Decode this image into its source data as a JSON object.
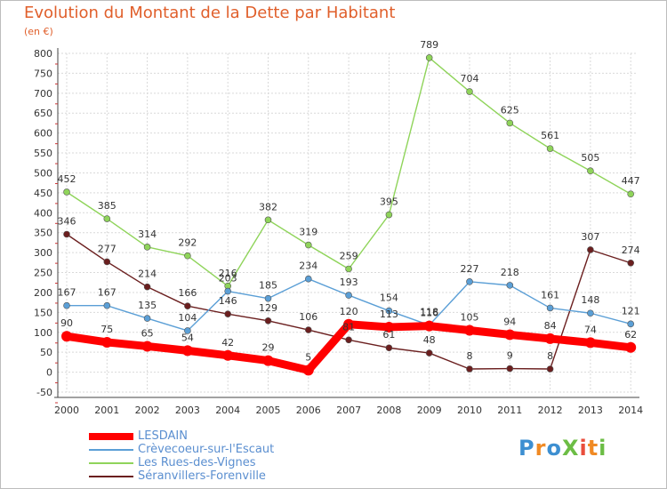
{
  "title": "Evolution du Montant de la Dette par Habitant",
  "subtitle": "(en €)",
  "logo": {
    "text": "ProXiti",
    "colors": [
      "#3d8fd1",
      "#f08a24",
      "#3d8fd1",
      "#6cbd45",
      "#e94e3c",
      "#f08a24",
      "#6cbd45"
    ]
  },
  "chart_data": {
    "type": "line",
    "x": [
      "2000",
      "2001",
      "2002",
      "2003",
      "2004",
      "2005",
      "2006",
      "2007",
      "2008",
      "2009",
      "2010",
      "2011",
      "2012",
      "2013",
      "2014"
    ],
    "ylim": [
      -50,
      800
    ],
    "yticks": [
      -50,
      0,
      50,
      100,
      150,
      200,
      250,
      300,
      350,
      400,
      450,
      500,
      550,
      600,
      650,
      700,
      750,
      800
    ],
    "ytick_labels": [
      "-50",
      "0",
      "50",
      "100",
      "150",
      "200",
      "250",
      "300",
      "350",
      "400",
      "450",
      "500",
      "550",
      "600",
      "650",
      "700",
      "750",
      "800"
    ],
    "grid": true,
    "legend_position": "bottom-left",
    "series": [
      {
        "name": "LESDAIN",
        "color": "#ff0000",
        "values": [
          90,
          75,
          65,
          54,
          42,
          29,
          5,
          120,
          113,
          116,
          105,
          94,
          84,
          74,
          62
        ],
        "labels": [
          "90",
          "75",
          "65",
          "54",
          "42",
          "29",
          "5",
          "120",
          "113",
          "116",
          "105",
          "94",
          "84",
          "74",
          "62"
        ]
      },
      {
        "name": "Crèvecoeur-sur-l'Escaut",
        "color": "#5b9fd6",
        "values": [
          167,
          167,
          135,
          104,
          203,
          185,
          234,
          193,
          154,
          118,
          227,
          218,
          161,
          148,
          121
        ],
        "labels": [
          "167",
          "167",
          "135",
          "104",
          "203",
          "185",
          "234",
          "193",
          "154",
          "118",
          "227",
          "218",
          "161",
          "148",
          "121"
        ]
      },
      {
        "name": "Les Rues-des-Vignes",
        "color": "#8fd45a",
        "values": [
          452,
          385,
          314,
          292,
          216,
          382,
          319,
          259,
          395,
          789,
          704,
          625,
          561,
          505,
          447
        ],
        "labels": [
          "452",
          "385",
          "314",
          "292",
          "216",
          "382",
          "319",
          "259",
          "395",
          "789",
          "704",
          "625",
          "561",
          "505",
          "447"
        ]
      },
      {
        "name": "Séranvillers-Forenville",
        "color": "#6b1f1f",
        "values": [
          346,
          277,
          214,
          166,
          146,
          129,
          106,
          81,
          61,
          48,
          8,
          9,
          8,
          307,
          274
        ],
        "labels": [
          "346",
          "277",
          "214",
          "166",
          "146",
          "129",
          "106",
          "81",
          "61",
          "48",
          "8",
          "9",
          "8",
          "307",
          "274"
        ]
      }
    ]
  }
}
